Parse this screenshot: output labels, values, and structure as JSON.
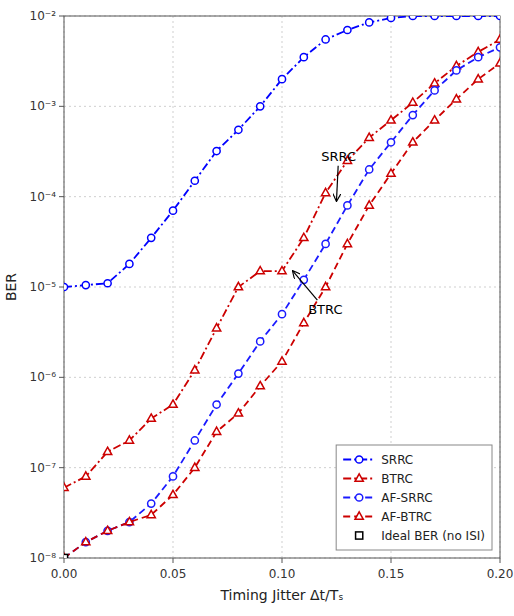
{
  "chart_data": {
    "type": "line",
    "x": [
      0,
      0.01,
      0.02,
      0.03,
      0.04,
      0.05,
      0.06,
      0.07,
      0.08,
      0.09,
      0.1,
      0.11,
      0.12,
      0.13,
      0.14,
      0.15,
      0.16,
      0.17,
      0.18,
      0.19,
      0.2
    ],
    "series": [
      {
        "name": "SRRC",
        "color": "#0000ff",
        "marker": "circle",
        "line_style": "dashdot",
        "values": [
          1e-05,
          1.05e-05,
          1.1e-05,
          1.8e-05,
          3.5e-05,
          7e-05,
          0.00015,
          0.00032,
          0.00055,
          0.001,
          0.002,
          0.0035,
          0.0055,
          0.007,
          0.0085,
          0.0095,
          0.01,
          0.01,
          0.01,
          0.01,
          0.01
        ]
      },
      {
        "name": "BTRC",
        "color": "#cc0000",
        "marker": "triangle",
        "line_style": "dashdot",
        "values": [
          6e-08,
          8e-08,
          1.5e-07,
          2e-07,
          3.5e-07,
          5e-07,
          1.2e-06,
          3.5e-06,
          1e-05,
          1.5e-05,
          1.5e-05,
          3.5e-05,
          0.00011,
          0.00025,
          0.00045,
          0.0007,
          0.0011,
          0.0018,
          0.0028,
          0.004,
          0.0055
        ]
      },
      {
        "name": "AF-SRRC",
        "color": "#1a1aff",
        "marker": "circle",
        "line_style": "dashed",
        "values": [
          1e-08,
          1.5e-08,
          2e-08,
          2.5e-08,
          4e-08,
          8e-08,
          2e-07,
          5e-07,
          1.1e-06,
          2.5e-06,
          5e-06,
          1.2e-05,
          3e-05,
          8e-05,
          0.0002,
          0.0004,
          0.0008,
          0.0015,
          0.0025,
          0.0035,
          0.0045
        ]
      },
      {
        "name": "AF-BTRC",
        "color": "#cc0000",
        "marker": "triangle",
        "line_style": "dashed",
        "values": [
          1e-08,
          1.5e-08,
          2e-08,
          2.5e-08,
          3e-08,
          5e-08,
          1e-07,
          2.5e-07,
          4e-07,
          8e-07,
          1.5e-06,
          4e-06,
          1e-05,
          3e-05,
          8e-05,
          0.00018,
          0.0004,
          0.0007,
          0.0012,
          0.002,
          0.003
        ]
      },
      {
        "name": "Ideal BER (no ISI)",
        "type": "scatter",
        "color": "black",
        "marker": "square",
        "line_style": "none",
        "x": [
          0
        ],
        "values": [
          1e-08
        ]
      }
    ],
    "xlabel": "Timing Jitter Δt/Tₛ",
    "ylabel": "BER",
    "xlim": [
      0,
      0.2
    ],
    "ylim": [
      1e-08,
      0.01
    ],
    "log": "y",
    "xticks": [
      {
        "value": 0,
        "label": "0.00"
      },
      0.05,
      {
        "value": 0.1,
        "label": "0.10"
      },
      0.15,
      {
        "value": 0.2,
        "label": "0.20"
      }
    ],
    "yticks": [
      {
        "value": 1e-08,
        "label": "10⁻⁸"
      },
      {
        "value": 1e-07,
        "label": "10⁻⁷"
      },
      {
        "value": 1e-06,
        "label": "10⁻⁶"
      },
      {
        "value": 1e-05,
        "label": "10⁻⁵"
      },
      {
        "value": 0.0001,
        "label": "10⁻⁴"
      },
      {
        "value": 0.001,
        "label": "10⁻³"
      },
      {
        "value": 0.01,
        "label": "10⁻²"
      }
    ],
    "grid": true,
    "legend": "lower right",
    "annotations": [
      {
        "text": "SRRC",
        "xy": [
          0.125,
          9e-05
        ],
        "xytext": [
          0.118,
          0.00025
        ]
      },
      {
        "text": "BTRC",
        "xy": [
          0.105,
          1.5e-05
        ],
        "xytext": [
          0.112,
          5e-06
        ]
      }
    ]
  }
}
